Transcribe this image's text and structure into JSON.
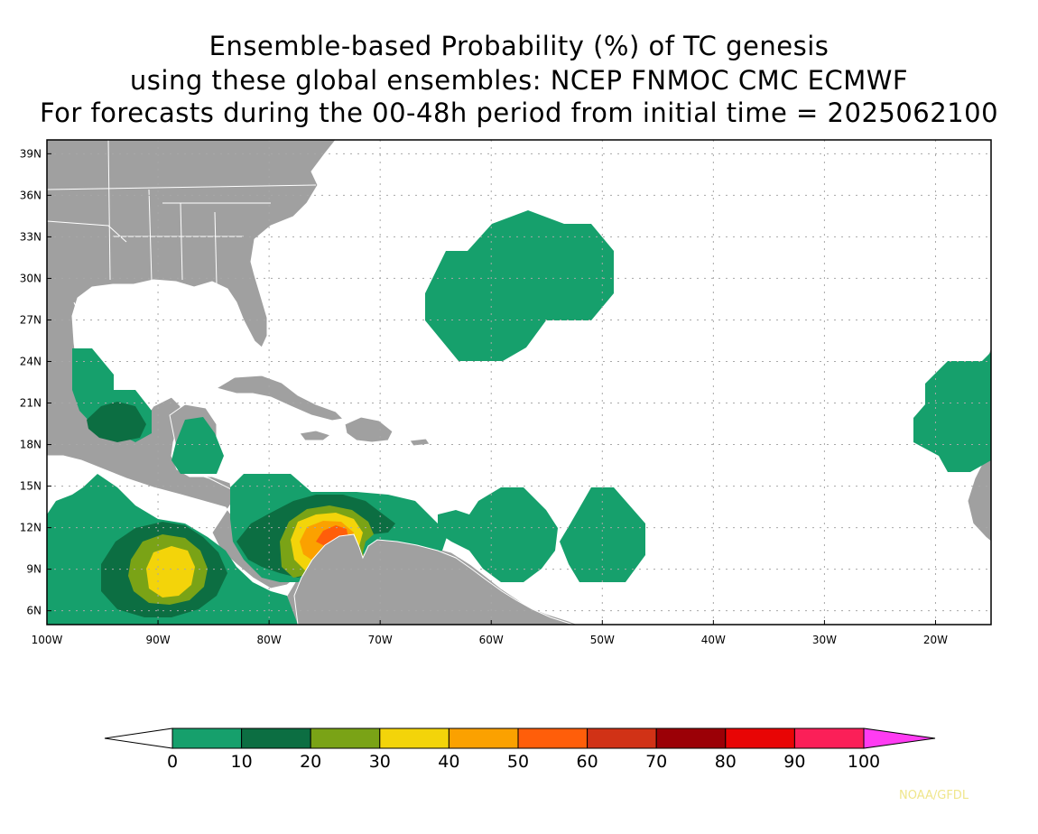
{
  "title": {
    "line1": "Ensemble-based Probability (%) of TC genesis",
    "line2": "using these global ensembles:   NCEP FNMOC CMC ECMWF",
    "line3": "For forecasts during the 00-48h period from initial time = 2025062100"
  },
  "map": {
    "lon_range": [
      -100,
      -15
    ],
    "lat_range": [
      5,
      40
    ],
    "lat_ticks": [
      "39N",
      "36N",
      "33N",
      "30N",
      "27N",
      "24N",
      "21N",
      "18N",
      "15N",
      "12N",
      "9N",
      "6N"
    ],
    "lon_ticks": [
      "100W",
      "90W",
      "80W",
      "70W",
      "60W",
      "50W",
      "40W",
      "30W",
      "20W"
    ],
    "land_color": "#a0a0a0",
    "ocean_color": "#ffffff"
  },
  "colorbar": {
    "labels": [
      "0",
      "10",
      "20",
      "30",
      "40",
      "50",
      "60",
      "70",
      "80",
      "90",
      "100"
    ],
    "colors": [
      "#16a06c",
      "#0c6e42",
      "#7aa316",
      "#f3d40a",
      "#fba100",
      "#ff5e0a",
      "#d13216",
      "#9b0006",
      "#e80505",
      "#fb1f58"
    ],
    "under_color": "#ffffff",
    "over_color": "#ff3cf2"
  },
  "credit": "NOAA/GFDL"
}
